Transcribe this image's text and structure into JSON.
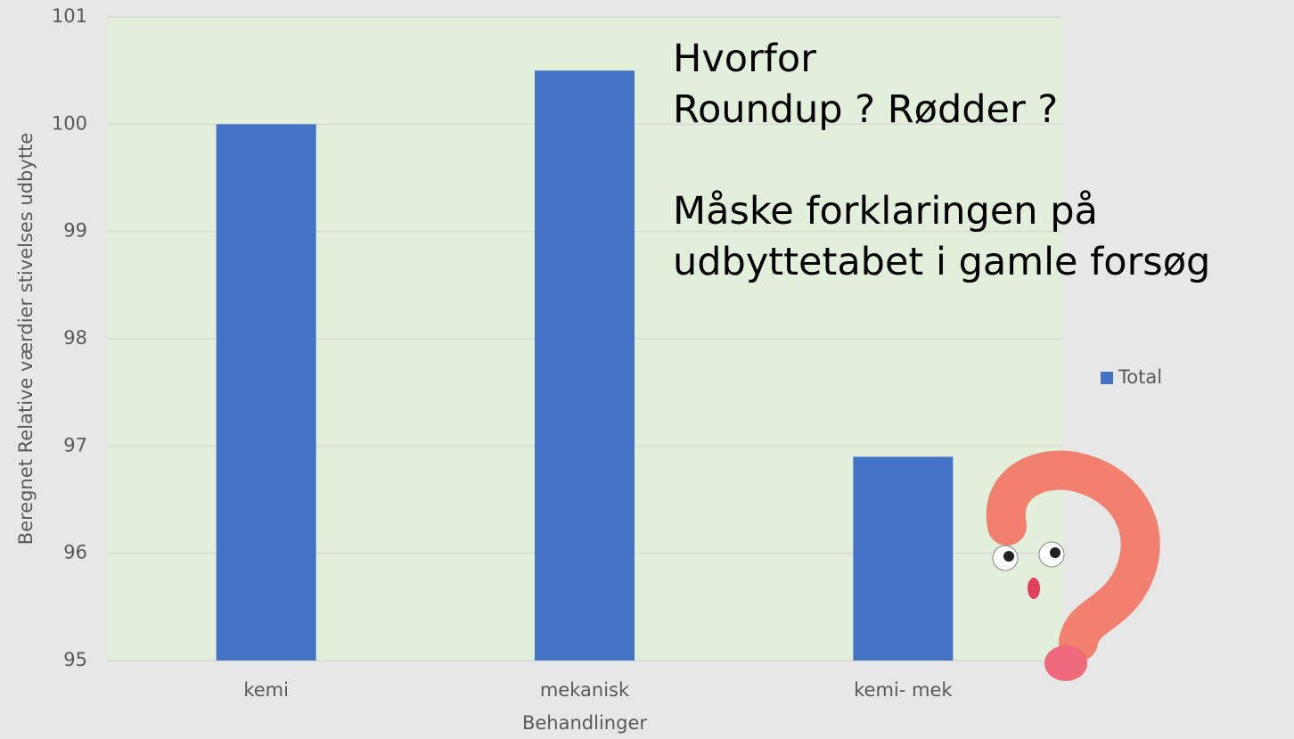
{
  "chart_data": {
    "type": "bar",
    "categories": [
      "kemi",
      "mekanisk",
      "kemi- mek"
    ],
    "series": [
      {
        "name": "Total",
        "color": "#4472c4",
        "values": [
          100.0,
          100.5,
          96.9
        ]
      }
    ],
    "ylim": [
      95,
      101
    ],
    "yticks": [
      95,
      96,
      97,
      98,
      99,
      100,
      101
    ],
    "x_label": "Behandlinger",
    "y_label": "Beregnet Relative værdier stivelses udbytte",
    "annotations": [
      "Hvorfor",
      "Roundup ? Rødder ?",
      "Måske forklaringen på",
      "udbyttetabet i gamle forsøg"
    ],
    "grid": true,
    "legend": "right",
    "plot_background": "#e2efda"
  }
}
